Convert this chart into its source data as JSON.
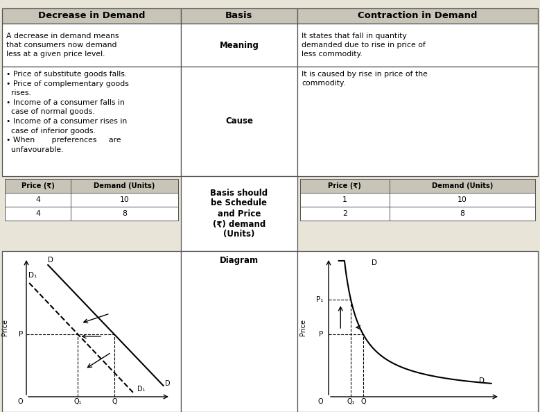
{
  "title_left": "Decrease in Demand",
  "title_center": "Basis",
  "title_right": "Contraction in Demand",
  "row1_label": "Meaning",
  "row1_left": "A decrease in demand means\nthat consumers now demand\nless at a given price level.",
  "row1_right": "It states that fall in quantity\ndemanded due to rise in price of\nless commodity.",
  "row2_label": "Cause",
  "row2_left": "• Price of substitute goods falls.\n• Price of complementary goods\n  rises.\n• Income of a consumer falls in\n  case of normal goods.\n• Income of a consumer rises in\n  case of inferior goods.\n• When       preferences     are\n  unfavourable.",
  "row2_right": "It is caused by rise in price of the\ncommodity.",
  "row3_label": "Basis should\nbe Schedule\nand Price\n(₹) demand\n(Units)",
  "row3_left_headers": [
    "Price (₹)",
    "Demand (Units)"
  ],
  "row3_left_data": [
    [
      "4",
      "10"
    ],
    [
      "4",
      "8"
    ]
  ],
  "row3_right_headers": [
    "Price (₹)",
    "Demand (Units)"
  ],
  "row3_right_data": [
    [
      "1",
      "10"
    ],
    [
      "2",
      "8"
    ]
  ],
  "row4_label": "Diagram",
  "bg_color": "#e8e4d8",
  "header_bg": "#c8c4b8",
  "sub_header_bg": "#c8c4b8",
  "border_color": "#555555"
}
